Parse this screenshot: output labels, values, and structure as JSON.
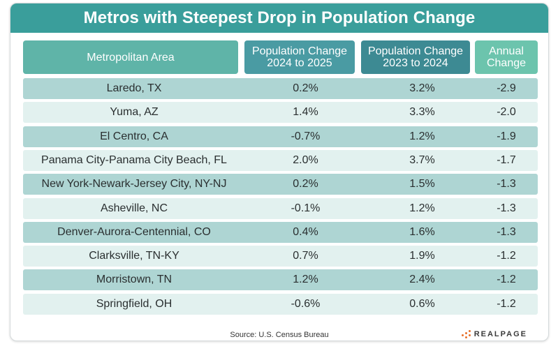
{
  "title": "Metros with Steepest Drop in Population Change",
  "headers": {
    "area": "Metropolitan Area",
    "change_2024_2025_line1": "Population Change",
    "change_2024_2025_line2": "2024 to 2025",
    "change_2023_2024_line1": "Population Change",
    "change_2023_2024_line2": "2023 to 2024",
    "annual_line1": "Annual",
    "annual_line2": "Change"
  },
  "rows": [
    {
      "area": "Laredo, TX",
      "c2025": "0.2%",
      "c2024": "3.2%",
      "annual": "-2.9"
    },
    {
      "area": "Yuma, AZ",
      "c2025": "1.4%",
      "c2024": "3.3%",
      "annual": "-2.0"
    },
    {
      "area": "El Centro, CA",
      "c2025": "-0.7%",
      "c2024": "1.2%",
      "annual": "-1.9"
    },
    {
      "area": "Panama City-Panama City Beach, FL",
      "c2025": "2.0%",
      "c2024": "3.7%",
      "annual": "-1.7"
    },
    {
      "area": "New York-Newark-Jersey City, NY-NJ",
      "c2025": "0.2%",
      "c2024": "1.5%",
      "annual": "-1.3"
    },
    {
      "area": "Asheville, NC",
      "c2025": "-0.1%",
      "c2024": "1.2%",
      "annual": "-1.3"
    },
    {
      "area": "Denver-Aurora-Centennial, CO",
      "c2025": "0.4%",
      "c2024": "1.6%",
      "annual": "-1.3"
    },
    {
      "area": "Clarksville, TN-KY",
      "c2025": "0.7%",
      "c2024": "1.9%",
      "annual": "-1.2"
    },
    {
      "area": "Morristown, TN",
      "c2025": "1.2%",
      "c2024": "2.4%",
      "annual": "-1.2"
    },
    {
      "area": "Springfield, OH",
      "c2025": "-0.6%",
      "c2024": "0.6%",
      "annual": "-1.2"
    }
  ],
  "source": "Source: U.S. Census Bureau",
  "logo": {
    "text": "REALPAGE",
    "icon": "realpage-dots-icon",
    "accent": "#e8702a"
  },
  "colors": {
    "title_bg": "#3a9e9b",
    "row_dark": "#aed5d3",
    "row_light": "#e2f1ef"
  }
}
